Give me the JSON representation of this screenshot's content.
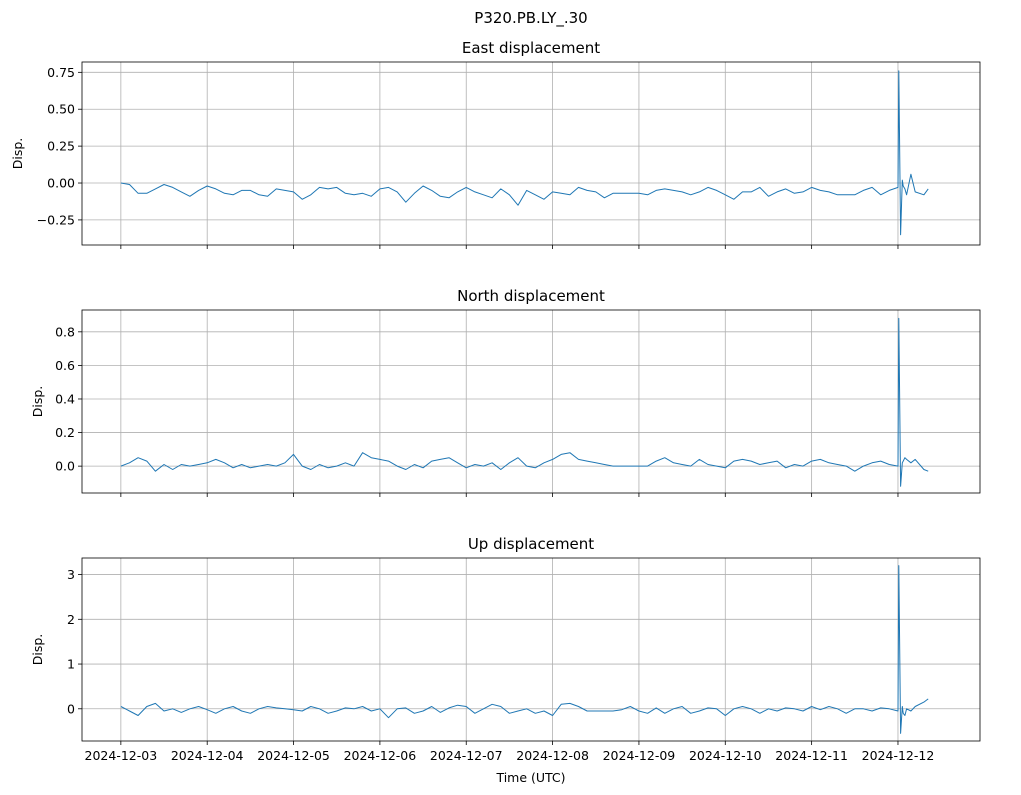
{
  "figure": {
    "title": "P320.PB.LY_.30",
    "series_color": "#1f77b4"
  },
  "chart_data": [
    {
      "type": "line",
      "title": "East displacement",
      "xlabel": "",
      "ylabel": "Disp.",
      "xlim": [
        -0.45,
        9.95
      ],
      "ylim": [
        -0.42,
        0.82
      ],
      "yticks": [
        -0.25,
        0.0,
        0.25,
        0.5,
        0.75
      ],
      "ytick_labels": [
        "−0.25",
        "0.00",
        "0.25",
        "0.50",
        "0.75"
      ],
      "xticks": [
        0,
        1,
        2,
        3,
        4,
        5,
        6,
        7,
        8,
        9
      ],
      "xtick_labels": [
        "2024-12-03",
        "2024-12-04",
        "2024-12-05",
        "2024-12-06",
        "2024-12-07",
        "2024-12-08",
        "2024-12-09",
        "2024-12-10",
        "2024-12-11",
        "2024-12-12"
      ],
      "show_xtick_labels": false,
      "grid": true,
      "x": [
        0.0,
        0.1,
        0.2,
        0.3,
        0.4,
        0.5,
        0.6,
        0.7,
        0.8,
        0.9,
        1.0,
        1.1,
        1.2,
        1.3,
        1.4,
        1.5,
        1.6,
        1.7,
        1.8,
        1.9,
        2.0,
        2.1,
        2.2,
        2.3,
        2.4,
        2.5,
        2.6,
        2.7,
        2.8,
        2.9,
        3.0,
        3.1,
        3.2,
        3.3,
        3.4,
        3.5,
        3.6,
        3.7,
        3.8,
        3.9,
        4.0,
        4.1,
        4.2,
        4.3,
        4.4,
        4.5,
        4.6,
        4.7,
        4.8,
        4.9,
        5.0,
        5.1,
        5.2,
        5.3,
        5.4,
        5.5,
        5.6,
        5.7,
        5.8,
        5.9,
        6.0,
        6.1,
        6.2,
        6.3,
        6.4,
        6.5,
        6.6,
        6.7,
        6.8,
        6.9,
        7.0,
        7.1,
        7.2,
        7.3,
        7.4,
        7.5,
        7.6,
        7.7,
        7.8,
        7.9,
        8.0,
        8.1,
        8.2,
        8.3,
        8.4,
        8.5,
        8.6,
        8.7,
        8.8,
        8.9,
        9.0,
        9.01,
        9.03,
        9.05,
        9.06,
        9.08,
        9.1,
        9.15,
        9.2,
        9.3,
        9.35
      ],
      "y": [
        0.0,
        -0.01,
        -0.07,
        -0.07,
        -0.04,
        -0.01,
        -0.03,
        -0.06,
        -0.09,
        -0.05,
        -0.02,
        -0.04,
        -0.07,
        -0.08,
        -0.05,
        -0.05,
        -0.08,
        -0.09,
        -0.04,
        -0.05,
        -0.06,
        -0.11,
        -0.08,
        -0.03,
        -0.04,
        -0.03,
        -0.07,
        -0.08,
        -0.07,
        -0.09,
        -0.04,
        -0.03,
        -0.06,
        -0.13,
        -0.07,
        -0.02,
        -0.05,
        -0.09,
        -0.1,
        -0.06,
        -0.03,
        -0.06,
        -0.08,
        -0.1,
        -0.04,
        -0.08,
        -0.15,
        -0.05,
        -0.08,
        -0.11,
        -0.06,
        -0.07,
        -0.08,
        -0.03,
        -0.05,
        -0.06,
        -0.1,
        -0.07,
        -0.07,
        -0.07,
        -0.07,
        -0.08,
        -0.05,
        -0.04,
        -0.05,
        -0.06,
        -0.08,
        -0.06,
        -0.03,
        -0.05,
        -0.08,
        -0.11,
        -0.06,
        -0.06,
        -0.03,
        -0.09,
        -0.06,
        -0.04,
        -0.07,
        -0.06,
        -0.03,
        -0.05,
        -0.06,
        -0.08,
        -0.08,
        -0.08,
        -0.05,
        -0.03,
        -0.08,
        -0.05,
        -0.03,
        0.76,
        -0.35,
        0.02,
        -0.02,
        -0.04,
        -0.08,
        0.06,
        -0.06,
        -0.08,
        -0.04
      ]
    },
    {
      "type": "line",
      "title": "North displacement",
      "xlabel": "",
      "ylabel": "Disp.",
      "xlim": [
        -0.45,
        9.95
      ],
      "ylim": [
        -0.16,
        0.93
      ],
      "yticks": [
        0.0,
        0.2,
        0.4,
        0.6,
        0.8
      ],
      "ytick_labels": [
        "0.0",
        "0.2",
        "0.4",
        "0.6",
        "0.8"
      ],
      "xticks": [
        0,
        1,
        2,
        3,
        4,
        5,
        6,
        7,
        8,
        9
      ],
      "xtick_labels": [
        "2024-12-03",
        "2024-12-04",
        "2024-12-05",
        "2024-12-06",
        "2024-12-07",
        "2024-12-08",
        "2024-12-09",
        "2024-12-10",
        "2024-12-11",
        "2024-12-12"
      ],
      "show_xtick_labels": false,
      "grid": true,
      "x": [
        0.0,
        0.1,
        0.2,
        0.3,
        0.4,
        0.5,
        0.6,
        0.7,
        0.8,
        0.9,
        1.0,
        1.1,
        1.2,
        1.3,
        1.4,
        1.5,
        1.6,
        1.7,
        1.8,
        1.9,
        2.0,
        2.1,
        2.2,
        2.3,
        2.4,
        2.5,
        2.6,
        2.7,
        2.8,
        2.9,
        3.0,
        3.1,
        3.2,
        3.3,
        3.4,
        3.5,
        3.6,
        3.7,
        3.8,
        3.9,
        4.0,
        4.1,
        4.2,
        4.3,
        4.4,
        4.5,
        4.6,
        4.7,
        4.8,
        4.9,
        5.0,
        5.1,
        5.2,
        5.3,
        5.4,
        5.5,
        5.6,
        5.7,
        5.8,
        5.9,
        6.0,
        6.1,
        6.2,
        6.3,
        6.4,
        6.5,
        6.6,
        6.7,
        6.8,
        6.9,
        7.0,
        7.1,
        7.2,
        7.3,
        7.4,
        7.5,
        7.6,
        7.7,
        7.8,
        7.9,
        8.0,
        8.1,
        8.2,
        8.3,
        8.4,
        8.5,
        8.6,
        8.7,
        8.8,
        8.9,
        9.0,
        9.01,
        9.03,
        9.05,
        9.06,
        9.08,
        9.1,
        9.15,
        9.2,
        9.3,
        9.35
      ],
      "y": [
        0.0,
        0.02,
        0.05,
        0.03,
        -0.03,
        0.01,
        -0.02,
        0.01,
        0.0,
        0.01,
        0.02,
        0.04,
        0.02,
        -0.01,
        0.01,
        -0.01,
        0.0,
        0.01,
        0.0,
        0.02,
        0.07,
        0.0,
        -0.02,
        0.01,
        -0.01,
        0.0,
        0.02,
        0.0,
        0.08,
        0.05,
        0.04,
        0.03,
        0.0,
        -0.02,
        0.01,
        -0.01,
        0.03,
        0.04,
        0.05,
        0.02,
        -0.01,
        0.01,
        0.0,
        0.02,
        -0.02,
        0.02,
        0.05,
        0.0,
        -0.01,
        0.02,
        0.04,
        0.07,
        0.08,
        0.04,
        0.03,
        0.02,
        0.01,
        0.0,
        0.0,
        0.0,
        0.0,
        0.0,
        0.03,
        0.05,
        0.02,
        0.01,
        0.0,
        0.04,
        0.01,
        0.0,
        -0.01,
        0.03,
        0.04,
        0.03,
        0.01,
        0.02,
        0.03,
        -0.01,
        0.01,
        0.0,
        0.03,
        0.04,
        0.02,
        0.01,
        0.0,
        -0.03,
        0.0,
        0.02,
        0.03,
        0.01,
        0.0,
        0.88,
        -0.12,
        0.02,
        0.03,
        0.05,
        0.04,
        0.02,
        0.04,
        -0.02,
        -0.03
      ]
    },
    {
      "type": "line",
      "title": "Up displacement",
      "xlabel": "Time (UTC)",
      "ylabel": "Disp.",
      "xlim": [
        -0.45,
        9.95
      ],
      "ylim": [
        -0.72,
        3.37
      ],
      "yticks": [
        0,
        1,
        2,
        3
      ],
      "ytick_labels": [
        "0",
        "1",
        "2",
        "3"
      ],
      "xticks": [
        0,
        1,
        2,
        3,
        4,
        5,
        6,
        7,
        8,
        9
      ],
      "xtick_labels": [
        "2024-12-03",
        "2024-12-04",
        "2024-12-05",
        "2024-12-06",
        "2024-12-07",
        "2024-12-08",
        "2024-12-09",
        "2024-12-10",
        "2024-12-11",
        "2024-12-12"
      ],
      "show_xtick_labels": true,
      "grid": true,
      "x": [
        0.0,
        0.1,
        0.2,
        0.3,
        0.4,
        0.5,
        0.6,
        0.7,
        0.8,
        0.9,
        1.0,
        1.1,
        1.2,
        1.3,
        1.4,
        1.5,
        1.6,
        1.7,
        1.8,
        1.9,
        2.0,
        2.1,
        2.2,
        2.3,
        2.4,
        2.5,
        2.6,
        2.7,
        2.8,
        2.9,
        3.0,
        3.1,
        3.2,
        3.3,
        3.4,
        3.5,
        3.6,
        3.7,
        3.8,
        3.9,
        4.0,
        4.1,
        4.2,
        4.3,
        4.4,
        4.5,
        4.6,
        4.7,
        4.8,
        4.9,
        5.0,
        5.1,
        5.2,
        5.3,
        5.4,
        5.5,
        5.6,
        5.7,
        5.8,
        5.9,
        6.0,
        6.1,
        6.2,
        6.3,
        6.4,
        6.5,
        6.6,
        6.7,
        6.8,
        6.9,
        7.0,
        7.1,
        7.2,
        7.3,
        7.4,
        7.5,
        7.6,
        7.7,
        7.8,
        7.9,
        8.0,
        8.1,
        8.2,
        8.3,
        8.4,
        8.5,
        8.6,
        8.7,
        8.8,
        8.9,
        9.0,
        9.01,
        9.03,
        9.05,
        9.06,
        9.08,
        9.1,
        9.15,
        9.2,
        9.3,
        9.35
      ],
      "y": [
        0.05,
        -0.05,
        -0.15,
        0.05,
        0.12,
        -0.05,
        0.0,
        -0.08,
        0.0,
        0.05,
        -0.02,
        -0.1,
        0.0,
        0.05,
        -0.05,
        -0.1,
        0.0,
        0.05,
        0.02,
        0.0,
        -0.02,
        -0.05,
        0.05,
        0.0,
        -0.1,
        -0.05,
        0.02,
        0.0,
        0.05,
        -0.05,
        0.0,
        -0.2,
        0.0,
        0.02,
        -0.1,
        -0.05,
        0.05,
        -0.08,
        0.02,
        0.08,
        0.05,
        -0.1,
        0.0,
        0.1,
        0.05,
        -0.1,
        -0.05,
        0.0,
        -0.1,
        -0.05,
        -0.15,
        0.1,
        0.12,
        0.05,
        -0.05,
        -0.05,
        -0.05,
        -0.05,
        -0.02,
        0.05,
        -0.05,
        -0.1,
        0.02,
        -0.1,
        0.0,
        0.05,
        -0.1,
        -0.05,
        0.02,
        0.0,
        -0.15,
        0.0,
        0.05,
        0.0,
        -0.1,
        0.0,
        -0.05,
        0.02,
        0.0,
        -0.05,
        0.05,
        -0.02,
        0.05,
        0.0,
        -0.1,
        0.0,
        0.0,
        -0.05,
        0.02,
        0.0,
        -0.05,
        3.2,
        -0.55,
        0.05,
        -0.1,
        -0.15,
        0.0,
        -0.05,
        0.05,
        0.15,
        0.22
      ]
    }
  ]
}
